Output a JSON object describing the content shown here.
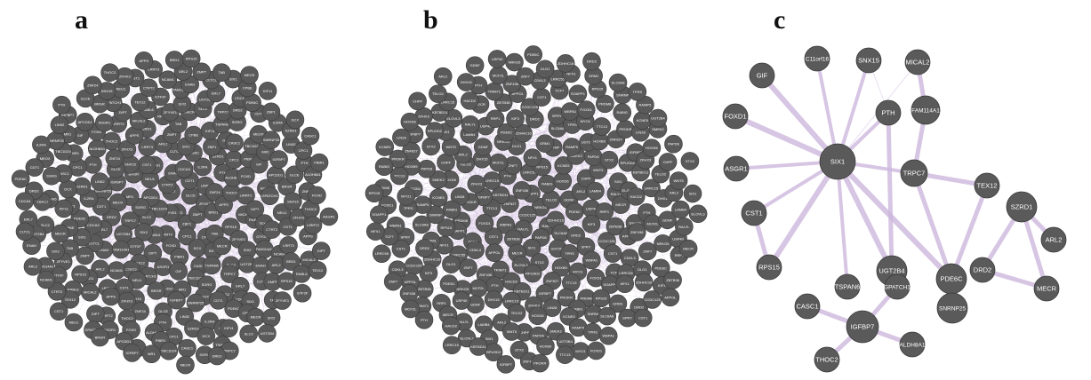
{
  "panels": [
    {
      "letter": "a"
    },
    {
      "letter": "b"
    },
    {
      "letter": "c"
    }
  ],
  "colors": {
    "node_fill": "#5a5a5a",
    "node_stroke": "#3a3a3a",
    "edge": "#d9c8e6",
    "edge_strong": "#cdb7dd",
    "label": "#ffffff"
  },
  "network_a": {
    "labels": [
      "LRRT3",
      "ZFYVE1",
      "ERL7",
      "ZBP1",
      "TBC1D24",
      "GLCE",
      "LIRRT2",
      "CTRT2",
      "ZMPT",
      "SLC2",
      "CDT1",
      "CPC1",
      "APCDD1",
      "ZFHX3",
      "RABL6",
      "ENAH",
      "CPBE",
      "SGRG",
      "LIN52",
      "FOXD",
      "NEU1",
      "BRD1",
      "SIX2",
      "CDCA3",
      "DCX",
      "MR1",
      "ZNF24",
      "DIPT",
      "NCAM1",
      "TAB",
      "TRPC7",
      "IL2RA",
      "PIBR1",
      "BRGR",
      "APPS",
      "GTF2F",
      "CLTCL",
      "KIF11",
      "MEOX",
      "PTH",
      "ASGR1",
      "CST1",
      "RPS15",
      "UGT2B4",
      "PDE6C",
      "CASC1",
      "IGFBP7",
      "THOC2",
      "TEX12",
      "ARL2",
      "MECR",
      "DRD2",
      "SZRD1",
      "GIF",
      "SNX15",
      "MICAL2",
      "FAM114A1",
      "SIX1",
      "TSPAN6",
      "SNRNP25",
      "ALDH8A1",
      "GPATCH1"
    ]
  },
  "network_b": {
    "labels": [
      "NRKG5",
      "CCDC125",
      "SOAPP1",
      "RAMP5",
      "ZNF827",
      "TELO2",
      "RALYL",
      "ZNF436",
      "ZDHHC16",
      "WBPA1",
      "RABIG",
      "PAPD6",
      "KBTBD11",
      "GDNF",
      "ZBTB38",
      "LRRC55",
      "SLC6A8",
      "TTC13",
      "HOXD6",
      "SIX1",
      "PTH",
      "PDE6C",
      "CST1",
      "RPS15",
      "UGT2B4",
      "IGFBP7",
      "ARL2",
      "MECR",
      "ZNF7",
      "DRD2",
      "FOXD1",
      "KCNE5",
      "STX2",
      "LRRC15",
      "USP40",
      "APPOL",
      "NFX1",
      "TPRS",
      "PROKR",
      "CHPF",
      "ELOVL3",
      "MCF2L",
      "KIF3",
      "TCF7",
      "SNRNP",
      "HOXB9",
      "ZFHX3",
      "LAMB4",
      "TRIM71",
      "DLG1",
      "SPRY",
      "PRDM8",
      "SMEK2",
      "RPUSD2",
      "DHX15",
      "RRP1",
      "CDKL3",
      "GRM1",
      "MYO1",
      "LIN28",
      "WNT5",
      "HACD2"
    ]
  },
  "network_c": {
    "nodes": [
      {
        "id": "GIF",
        "label": "GIF"
      },
      {
        "id": "C11orf16",
        "label": "C11orf16"
      },
      {
        "id": "SNX15",
        "label": "SNX15"
      },
      {
        "id": "MICAL2",
        "label": "MICAL2"
      },
      {
        "id": "FAM114A1",
        "label": "FAM114A1"
      },
      {
        "id": "FOXD1",
        "label": "FOXD1"
      },
      {
        "id": "PTH",
        "label": "PTH"
      },
      {
        "id": "SIX1",
        "label": "SIX1"
      },
      {
        "id": "ASGR1",
        "label": "ASGR1"
      },
      {
        "id": "TRPC7",
        "label": "TRPC7"
      },
      {
        "id": "TEX12",
        "label": "TEX12"
      },
      {
        "id": "SZRD1",
        "label": "SZRD1"
      },
      {
        "id": "CST1",
        "label": "CST1"
      },
      {
        "id": "RPS15",
        "label": "RPS15"
      },
      {
        "id": "UGT2B4",
        "label": "UGT2B4"
      },
      {
        "id": "PDE6C",
        "label": "PDE6C"
      },
      {
        "id": "ARL2",
        "label": "ARL2"
      },
      {
        "id": "DRD2",
        "label": "DRD2"
      },
      {
        "id": "TSPAN6",
        "label": "TSPAN6"
      },
      {
        "id": "MECR",
        "label": "MECR"
      },
      {
        "id": "GPATCH1",
        "label": "GPATCH1"
      },
      {
        "id": "CASC1",
        "label": "CASC1"
      },
      {
        "id": "SNRNP25",
        "label": "SNRNP25"
      },
      {
        "id": "IGFBP7",
        "label": "IGFBP7"
      },
      {
        "id": "ALDH8A1",
        "label": "ALDH8A1"
      },
      {
        "id": "THOC2",
        "label": "THOC2"
      }
    ],
    "edges": [
      [
        "SIX1",
        "GIF"
      ],
      [
        "SIX1",
        "C11orf16"
      ],
      [
        "SIX1",
        "SNX15"
      ],
      [
        "SIX1",
        "FOXD1"
      ],
      [
        "SIX1",
        "PTH"
      ],
      [
        "SIX1",
        "ASGR1"
      ],
      [
        "SIX1",
        "TRPC7"
      ],
      [
        "SIX1",
        "CST1"
      ],
      [
        "SIX1",
        "RPS15"
      ],
      [
        "SIX1",
        "UGT2B4"
      ],
      [
        "SIX1",
        "PDE6C"
      ],
      [
        "SIX1",
        "TSPAN6"
      ],
      [
        "PTH",
        "UGT2B4"
      ],
      [
        "TRPC7",
        "PDE6C"
      ],
      [
        "TRPC7",
        "TEX12"
      ],
      [
        "MICAL2",
        "FAM114A1"
      ],
      [
        "FAM114A1",
        "TRPC7"
      ],
      [
        "CST1",
        "RPS15"
      ],
      [
        "TEX12",
        "PDE6C"
      ],
      [
        "SZRD1",
        "DRD2"
      ],
      [
        "SZRD1",
        "MECR"
      ],
      [
        "SZRD1",
        "ARL2"
      ],
      [
        "DRD2",
        "MECR"
      ],
      [
        "IGFBP7",
        "GPATCH1"
      ],
      [
        "IGFBP7",
        "CASC1"
      ],
      [
        "IGFBP7",
        "ALDH8A1"
      ],
      [
        "IGFBP7",
        "THOC2"
      ]
    ]
  }
}
